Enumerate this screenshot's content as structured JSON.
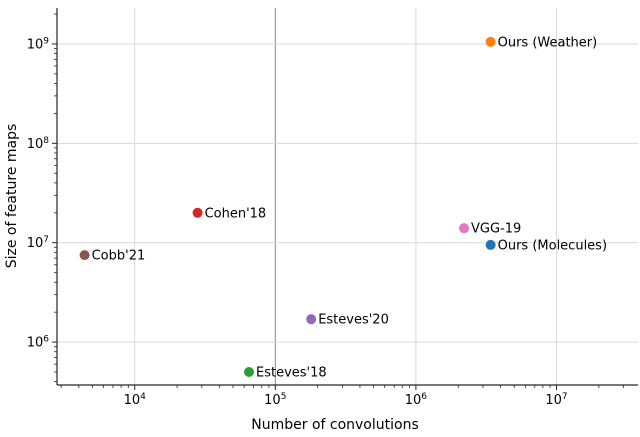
{
  "chart_data": {
    "type": "scatter",
    "title": "",
    "xlabel": "Number of convolutions",
    "ylabel": "Size of feature maps",
    "x_scale": "log",
    "y_scale": "log",
    "xlim": [
      2800,
      38000000
    ],
    "ylim": [
      370000,
      2300000000
    ],
    "x_ticks": [
      10000,
      100000,
      1000000,
      10000000
    ],
    "y_ticks": [
      1000000,
      10000000,
      100000000,
      1000000000
    ],
    "grid": true,
    "legend_position": "none",
    "highlight_gridline_x": 100000,
    "colors": {
      "grid": "#d9d9d9",
      "grid_highlight": "#8a8a8a",
      "spine": "#262626"
    },
    "points": [
      {
        "label": "Cobb'21",
        "x": 4400,
        "y": 7500000,
        "color": "#8c564b"
      },
      {
        "label": "Cohen'18",
        "x": 28000,
        "y": 20000000,
        "color": "#d62728"
      },
      {
        "label": "Esteves'18",
        "x": 65000,
        "y": 500000,
        "color": "#2ca02c"
      },
      {
        "label": "Esteves'20",
        "x": 180000,
        "y": 1700000,
        "color": "#9467bd"
      },
      {
        "label": "VGG-19",
        "x": 2200000,
        "y": 14000000,
        "color": "#e377c2"
      },
      {
        "label": "Ours (Molecules)",
        "x": 3400000,
        "y": 9500000,
        "color": "#1f77b4"
      },
      {
        "label": "Ours (Weather)",
        "x": 3400000,
        "y": 1050000000,
        "color": "#ff7f0e"
      }
    ]
  }
}
